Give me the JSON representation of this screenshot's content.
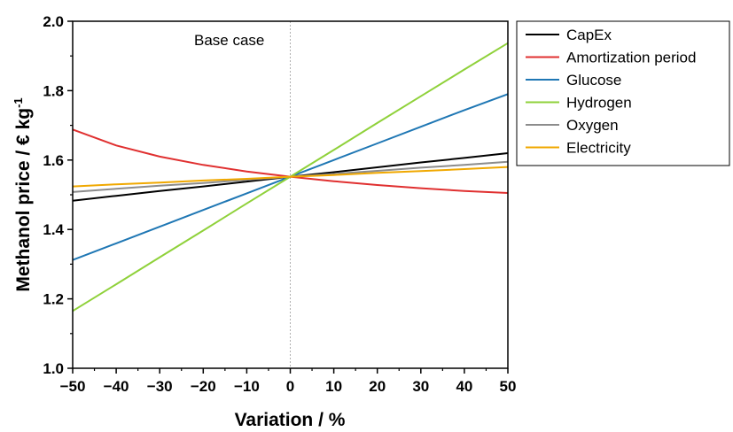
{
  "chart_data": {
    "type": "line",
    "xlabel": "Variation / %",
    "ylabel_main": "Methanol price / € kg",
    "ylabel_sup": "-1",
    "xlim": [
      -50,
      50
    ],
    "ylim": [
      1.0,
      2.0
    ],
    "xticks": [
      -50,
      -40,
      -30,
      -20,
      -10,
      0,
      10,
      20,
      30,
      40,
      50
    ],
    "xtick_labels": [
      "−50",
      "−40",
      "−30",
      "−20",
      "−10",
      "0",
      "10",
      "20",
      "30",
      "40",
      "50"
    ],
    "yticks": [
      1.0,
      1.2,
      1.4,
      1.6,
      1.8,
      2.0
    ],
    "ytick_labels": [
      "1.0",
      "1.2",
      "1.4",
      "1.6",
      "1.8",
      "2.0"
    ],
    "annotation": "Base case",
    "base_case_x": 0,
    "grid": false,
    "legend_position": "outside-top-right",
    "x": [
      -50,
      -40,
      -30,
      -20,
      -10,
      0,
      10,
      20,
      30,
      40,
      50
    ],
    "series": [
      {
        "name": "CapEx",
        "color": "#000000",
        "values": [
          1.483,
          1.497,
          1.511,
          1.524,
          1.538,
          1.552,
          1.565,
          1.579,
          1.593,
          1.606,
          1.62
        ]
      },
      {
        "name": "Amortization period",
        "color": "#e03030",
        "values": [
          1.688,
          1.642,
          1.61,
          1.586,
          1.567,
          1.552,
          1.539,
          1.528,
          1.519,
          1.511,
          1.505
        ]
      },
      {
        "name": "Glucose",
        "color": "#1f77b4",
        "values": [
          1.312,
          1.36,
          1.408,
          1.456,
          1.504,
          1.552,
          1.6,
          1.648,
          1.696,
          1.744,
          1.79
        ]
      },
      {
        "name": "Hydrogen",
        "color": "#8fd13a",
        "values": [
          1.165,
          1.242,
          1.32,
          1.397,
          1.475,
          1.552,
          1.629,
          1.707,
          1.784,
          1.861,
          1.937
        ]
      },
      {
        "name": "Oxygen",
        "color": "#8c8c8c",
        "values": [
          1.508,
          1.517,
          1.526,
          1.534,
          1.543,
          1.552,
          1.56,
          1.569,
          1.578,
          1.586,
          1.595
        ]
      },
      {
        "name": "Electricity",
        "color": "#f0a800",
        "values": [
          1.524,
          1.53,
          1.535,
          1.541,
          1.546,
          1.552,
          1.557,
          1.563,
          1.568,
          1.574,
          1.58
        ]
      }
    ]
  }
}
